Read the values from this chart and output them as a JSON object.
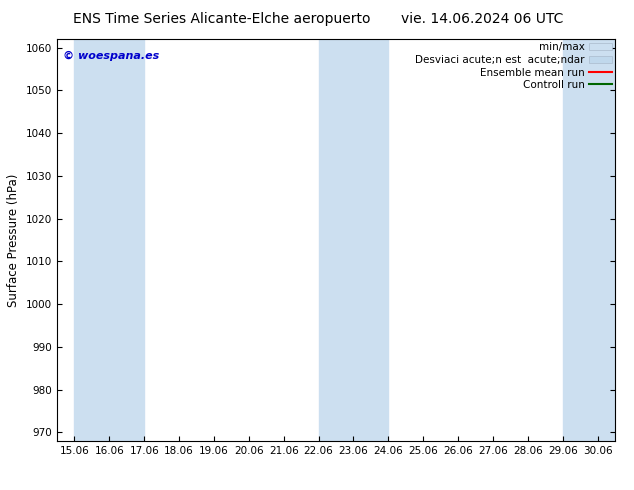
{
  "title_left": "ENS Time Series Alicante-Elche aeropuerto",
  "title_right": "vie. 14.06.2024 06 UTC",
  "ylabel": "Surface Pressure (hPa)",
  "ylim": [
    968,
    1062
  ],
  "yticks": [
    970,
    980,
    990,
    1000,
    1010,
    1020,
    1030,
    1040,
    1050,
    1060
  ],
  "xtick_labels": [
    "15.06",
    "16.06",
    "17.06",
    "18.06",
    "19.06",
    "20.06",
    "21.06",
    "22.06",
    "23.06",
    "24.06",
    "25.06",
    "26.06",
    "27.06",
    "28.06",
    "29.06",
    "30.06"
  ],
  "xtick_positions": [
    1,
    2,
    3,
    4,
    5,
    6,
    7,
    8,
    9,
    10,
    11,
    12,
    13,
    14,
    15,
    16
  ],
  "xlim": [
    0.5,
    16.5
  ],
  "weekend_bands": [
    {
      "x_start": 1,
      "x_end": 3,
      "color": "#ccdff0"
    },
    {
      "x_start": 8,
      "x_end": 10,
      "color": "#ccdff0"
    },
    {
      "x_start": 15,
      "x_end": 16.5,
      "color": "#ccdff0"
    }
  ],
  "watermark": "© woespana.es",
  "watermark_color": "#0000cc",
  "bg_color": "#ffffff",
  "plot_bg_color": "#ffffff",
  "legend_label_minmax": "min/max",
  "legend_label_std": "Desviaci acute;n est  acute;ndar",
  "legend_label_ensemble": "Ensemble mean run",
  "legend_label_control": "Controll run",
  "legend_minmax_color": "#ccdff0",
  "legend_std_color": "#c0d8ec",
  "legend_ensemble_color": "#ff0000",
  "legend_control_color": "#006600",
  "title_fontsize": 10,
  "tick_fontsize": 7.5,
  "ylabel_fontsize": 8.5,
  "legend_fontsize": 7.5,
  "watermark_fontsize": 8
}
